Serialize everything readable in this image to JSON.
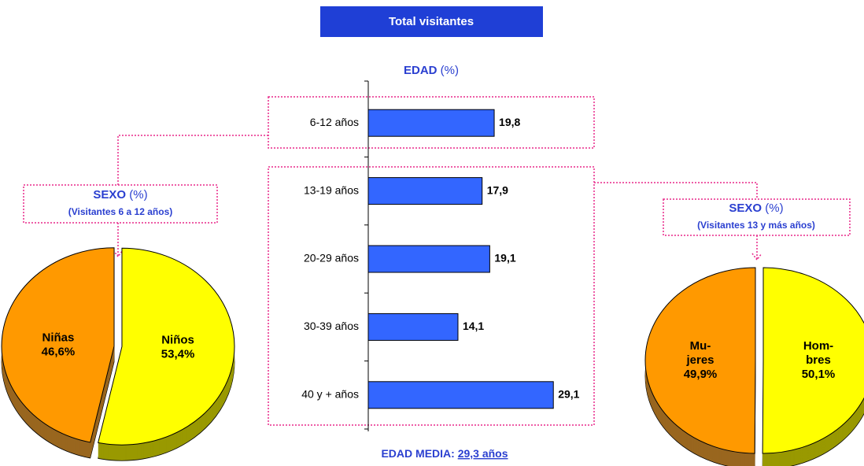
{
  "header": {
    "title": "Total visitantes"
  },
  "chart_data": [
    {
      "type": "bar",
      "title": "EDAD",
      "unit": "(%)",
      "categories": [
        "6-12 años",
        "13-19 años",
        "20-29 años",
        "30-39 años",
        "40 y + años"
      ],
      "values": [
        19.8,
        17.9,
        19.1,
        14.1,
        29.1
      ],
      "value_labels": [
        "19,8",
        "17,9",
        "19,1",
        "14,1",
        "29,1"
      ],
      "color": "#3366ff",
      "xlim": [
        0,
        36
      ],
      "annotation": {
        "label": "EDAD MEDIA:",
        "value": "29,3 años"
      }
    },
    {
      "type": "pie",
      "title": "SEXO",
      "unit": "(%)",
      "subtitle": "(Visitantes 6 a 12 años)",
      "categories": [
        [
          "Niñas"
        ],
        [
          "Niños"
        ]
      ],
      "values": [
        46.6,
        53.4
      ],
      "value_labels": [
        "46,6%",
        "53,4%"
      ],
      "colors": [
        "#ff9900",
        "#ffff00"
      ],
      "side_colors": [
        "#99661f",
        "#999900"
      ]
    },
    {
      "type": "pie",
      "title": "SEXO",
      "unit": "(%)",
      "subtitle": "(Visitantes 13 y más años)",
      "categories": [
        [
          "Mu-",
          "jeres"
        ],
        [
          "Hom-",
          "bres"
        ]
      ],
      "values": [
        49.9,
        50.1
      ],
      "value_labels": [
        "49,9%",
        "50,1%"
      ],
      "colors": [
        "#ff9900",
        "#ffff00"
      ],
      "side_colors": [
        "#99661f",
        "#999900"
      ]
    }
  ]
}
